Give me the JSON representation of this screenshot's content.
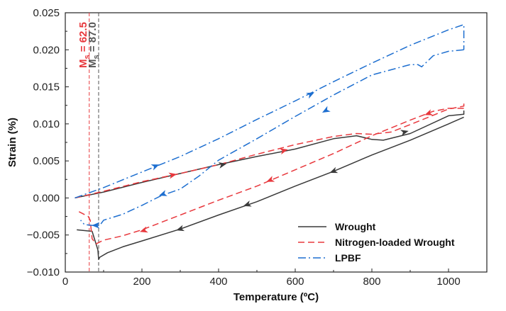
{
  "chart_data": {
    "type": "line",
    "xlabel": "Temperature (ºC)",
    "ylabel": "Strain (%)",
    "xlim": [
      0,
      1100
    ],
    "ylim": [
      -0.01,
      0.025
    ],
    "xticks": [
      0,
      200,
      400,
      600,
      800,
      1000
    ],
    "xtick_labels": [
      "0",
      "200",
      "400",
      "600",
      "800",
      "1000"
    ],
    "yticks": [
      -0.01,
      -0.005,
      0.0,
      0.005,
      0.01,
      0.015,
      0.02,
      0.025
    ],
    "ytick_labels": [
      "−0.010",
      "−0.005",
      "0.000",
      "0.005",
      "0.010",
      "0.015",
      "0.020",
      "0.025"
    ],
    "grid": false,
    "legend_position": "bottom-right",
    "annotations": [
      {
        "id": "ms-nitrogen",
        "prefix": "M",
        "subscript": "s",
        "text": " = 62.5",
        "x": 62.5,
        "color": "#e8383d"
      },
      {
        "id": "ms-wrought",
        "prefix": "M",
        "subscript": "s",
        "text": " = 87.0",
        "x": 87.0,
        "color": "#555555"
      }
    ],
    "series": [
      {
        "name": "Wrought",
        "color": "#3a3a3a",
        "dash": "solid",
        "heating": [
          [
            25,
            0.0
          ],
          [
            100,
            0.0008
          ],
          [
            200,
            0.0021
          ],
          [
            300,
            0.0033
          ],
          [
            400,
            0.0045
          ],
          [
            500,
            0.0056
          ],
          [
            600,
            0.0066
          ],
          [
            700,
            0.008
          ],
          [
            760,
            0.0084
          ],
          [
            800,
            0.0079
          ],
          [
            830,
            0.0078
          ],
          [
            900,
            0.0087
          ],
          [
            1000,
            0.0111
          ],
          [
            1040,
            0.0113
          ],
          [
            1040,
            0.0118
          ]
        ],
        "cooling": [
          [
            1040,
            0.0109
          ],
          [
            1000,
            0.01
          ],
          [
            900,
            0.0078
          ],
          [
            800,
            0.0058
          ],
          [
            700,
            0.0036
          ],
          [
            600,
            0.0016
          ],
          [
            500,
            -0.0005
          ],
          [
            400,
            -0.0023
          ],
          [
            300,
            -0.0042
          ],
          [
            200,
            -0.0058
          ],
          [
            150,
            -0.0066
          ],
          [
            110,
            -0.0074
          ],
          [
            90,
            -0.008
          ],
          [
            87,
            -0.0083
          ],
          [
            85,
            -0.007
          ],
          [
            70,
            -0.0045
          ],
          [
            30,
            -0.0043
          ]
        ],
        "arrows": [
          {
            "x": 410,
            "y": 0.0045,
            "dir": 1
          },
          {
            "x": 885,
            "y": 0.0089,
            "dir": 1
          },
          {
            "x": 700,
            "y": 0.0036,
            "dir": -1
          },
          {
            "x": 475,
            "y": -0.0009,
            "dir": -1
          },
          {
            "x": 300,
            "y": -0.0042,
            "dir": -1
          }
        ]
      },
      {
        "name": "Nitrogen-loaded Wrought",
        "color": "#e8383d",
        "dash": "9,5",
        "heating": [
          [
            25,
            0.0
          ],
          [
            100,
            0.0009
          ],
          [
            200,
            0.0022
          ],
          [
            300,
            0.0033
          ],
          [
            400,
            0.0045
          ],
          [
            500,
            0.0059
          ],
          [
            600,
            0.0072
          ],
          [
            700,
            0.0083
          ],
          [
            760,
            0.0087
          ],
          [
            800,
            0.0086
          ],
          [
            850,
            0.0089
          ],
          [
            900,
            0.0099
          ],
          [
            1000,
            0.012
          ],
          [
            1040,
            0.0124
          ],
          [
            1040,
            0.013
          ]
        ],
        "cooling": [
          [
            1040,
            0.0121
          ],
          [
            1000,
            0.0121
          ],
          [
            960,
            0.0117
          ],
          [
            900,
            0.0105
          ],
          [
            800,
            0.0084
          ],
          [
            700,
            0.006
          ],
          [
            600,
            0.0038
          ],
          [
            500,
            0.0016
          ],
          [
            400,
            -0.0003
          ],
          [
            300,
            -0.0023
          ],
          [
            200,
            -0.0043
          ],
          [
            150,
            -0.0051
          ],
          [
            100,
            -0.0057
          ],
          [
            80,
            -0.0062
          ],
          [
            70,
            -0.0055
          ],
          [
            65,
            -0.003
          ],
          [
            60,
            -0.0025
          ],
          [
            30,
            -0.0017
          ]
        ],
        "arrows": [
          {
            "x": 280,
            "y": 0.0031,
            "dir": 1
          },
          {
            "x": 570,
            "y": 0.0064,
            "dir": 1
          },
          {
            "x": 948,
            "y": 0.0114,
            "dir": -1
          },
          {
            "x": 535,
            "y": 0.0024,
            "dir": -1
          },
          {
            "x": 205,
            "y": -0.0044,
            "dir": -1
          }
        ]
      },
      {
        "name": "LPBF",
        "color": "#1e6fd0",
        "dash": "11,4,2,4",
        "heating": [
          [
            25,
            0.0
          ],
          [
            100,
            0.0014
          ],
          [
            200,
            0.0035
          ],
          [
            300,
            0.0056
          ],
          [
            400,
            0.008
          ],
          [
            500,
            0.0106
          ],
          [
            600,
            0.0131
          ],
          [
            700,
            0.0157
          ],
          [
            800,
            0.0182
          ],
          [
            900,
            0.0206
          ],
          [
            1000,
            0.0227
          ],
          [
            1040,
            0.0234
          ],
          [
            1040,
            0.02
          ]
        ],
        "cooling": [
          [
            1040,
            0.02
          ],
          [
            1000,
            0.0198
          ],
          [
            960,
            0.0192
          ],
          [
            930,
            0.0177
          ],
          [
            920,
            0.018
          ],
          [
            900,
            0.018
          ],
          [
            800,
            0.0166
          ],
          [
            700,
            0.0139
          ],
          [
            600,
            0.011
          ],
          [
            500,
            0.008
          ],
          [
            400,
            0.0051
          ],
          [
            350,
            0.003
          ],
          [
            300,
            0.0012
          ],
          [
            250,
            0.0003
          ],
          [
            200,
            -0.001
          ],
          [
            150,
            -0.0022
          ],
          [
            100,
            -0.003
          ],
          [
            90,
            -0.0037
          ],
          [
            70,
            -0.0037
          ],
          [
            50,
            -0.0036
          ],
          [
            40,
            -0.003
          ]
        ],
        "arrows": [
          {
            "x": 235,
            "y": 0.0043,
            "dir": 1
          },
          {
            "x": 640,
            "y": 0.014,
            "dir": 1
          },
          {
            "x": 680,
            "y": 0.0118,
            "dir": -1
          },
          {
            "x": 255,
            "y": 0.0005,
            "dir": -1
          },
          {
            "x": 80,
            "y": -0.0037,
            "dir": -1
          }
        ]
      }
    ]
  }
}
